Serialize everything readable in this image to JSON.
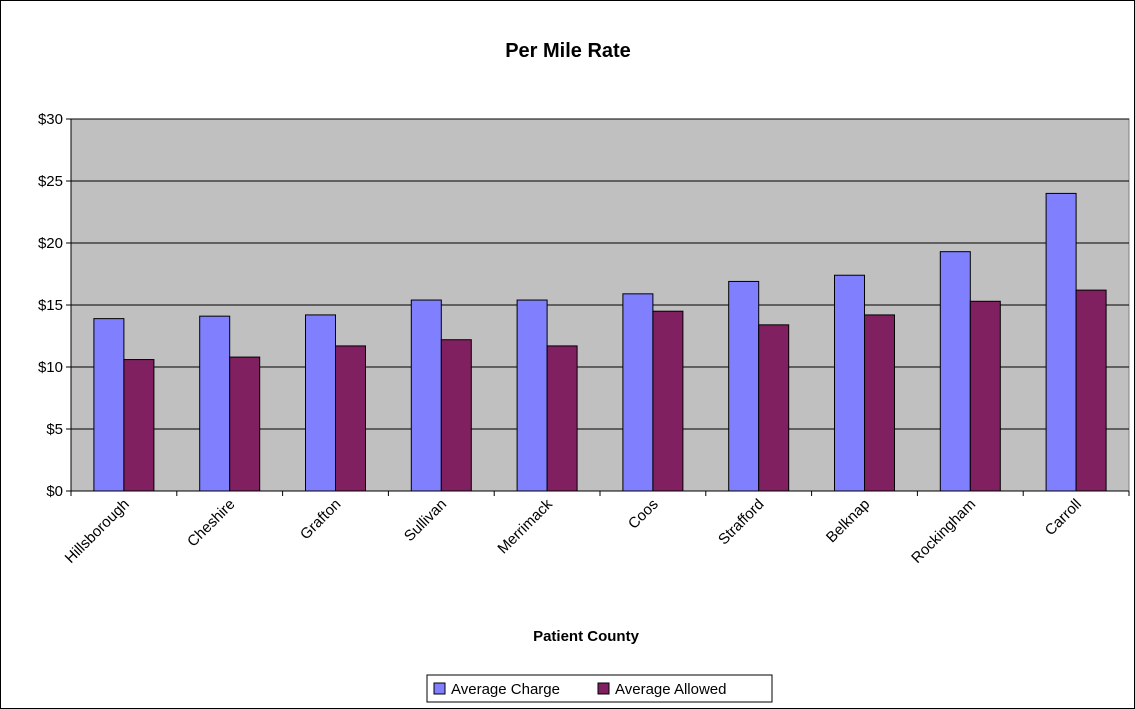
{
  "chart_data": {
    "type": "bar",
    "title": "Per Mile Rate",
    "xlabel": "Patient County",
    "ylabel": "",
    "ylim": [
      0,
      30
    ],
    "ytick_values": [
      0,
      5,
      10,
      15,
      20,
      25,
      30
    ],
    "yticks": [
      "$0",
      "$5",
      "$10",
      "$15",
      "$20",
      "$25",
      "$30"
    ],
    "categories": [
      "Hillsborough",
      "Cheshire",
      "Grafton",
      "Sullivan",
      "Merrimack",
      "Coos",
      "Strafford",
      "Belknap",
      "Rockingham",
      "Carroll"
    ],
    "series": [
      {
        "name": "Average Charge",
        "color": "#8080ff",
        "values": [
          13.9,
          14.1,
          14.2,
          15.4,
          15.4,
          15.9,
          16.9,
          17.4,
          19.3,
          24.0
        ]
      },
      {
        "name": "Average Allowed",
        "color": "#802060",
        "values": [
          10.6,
          10.8,
          11.7,
          12.2,
          11.7,
          14.5,
          13.4,
          14.2,
          15.3,
          16.2
        ]
      }
    ],
    "grid": true,
    "plot_background": "#c0c0c0",
    "legend_position": "bottom"
  }
}
